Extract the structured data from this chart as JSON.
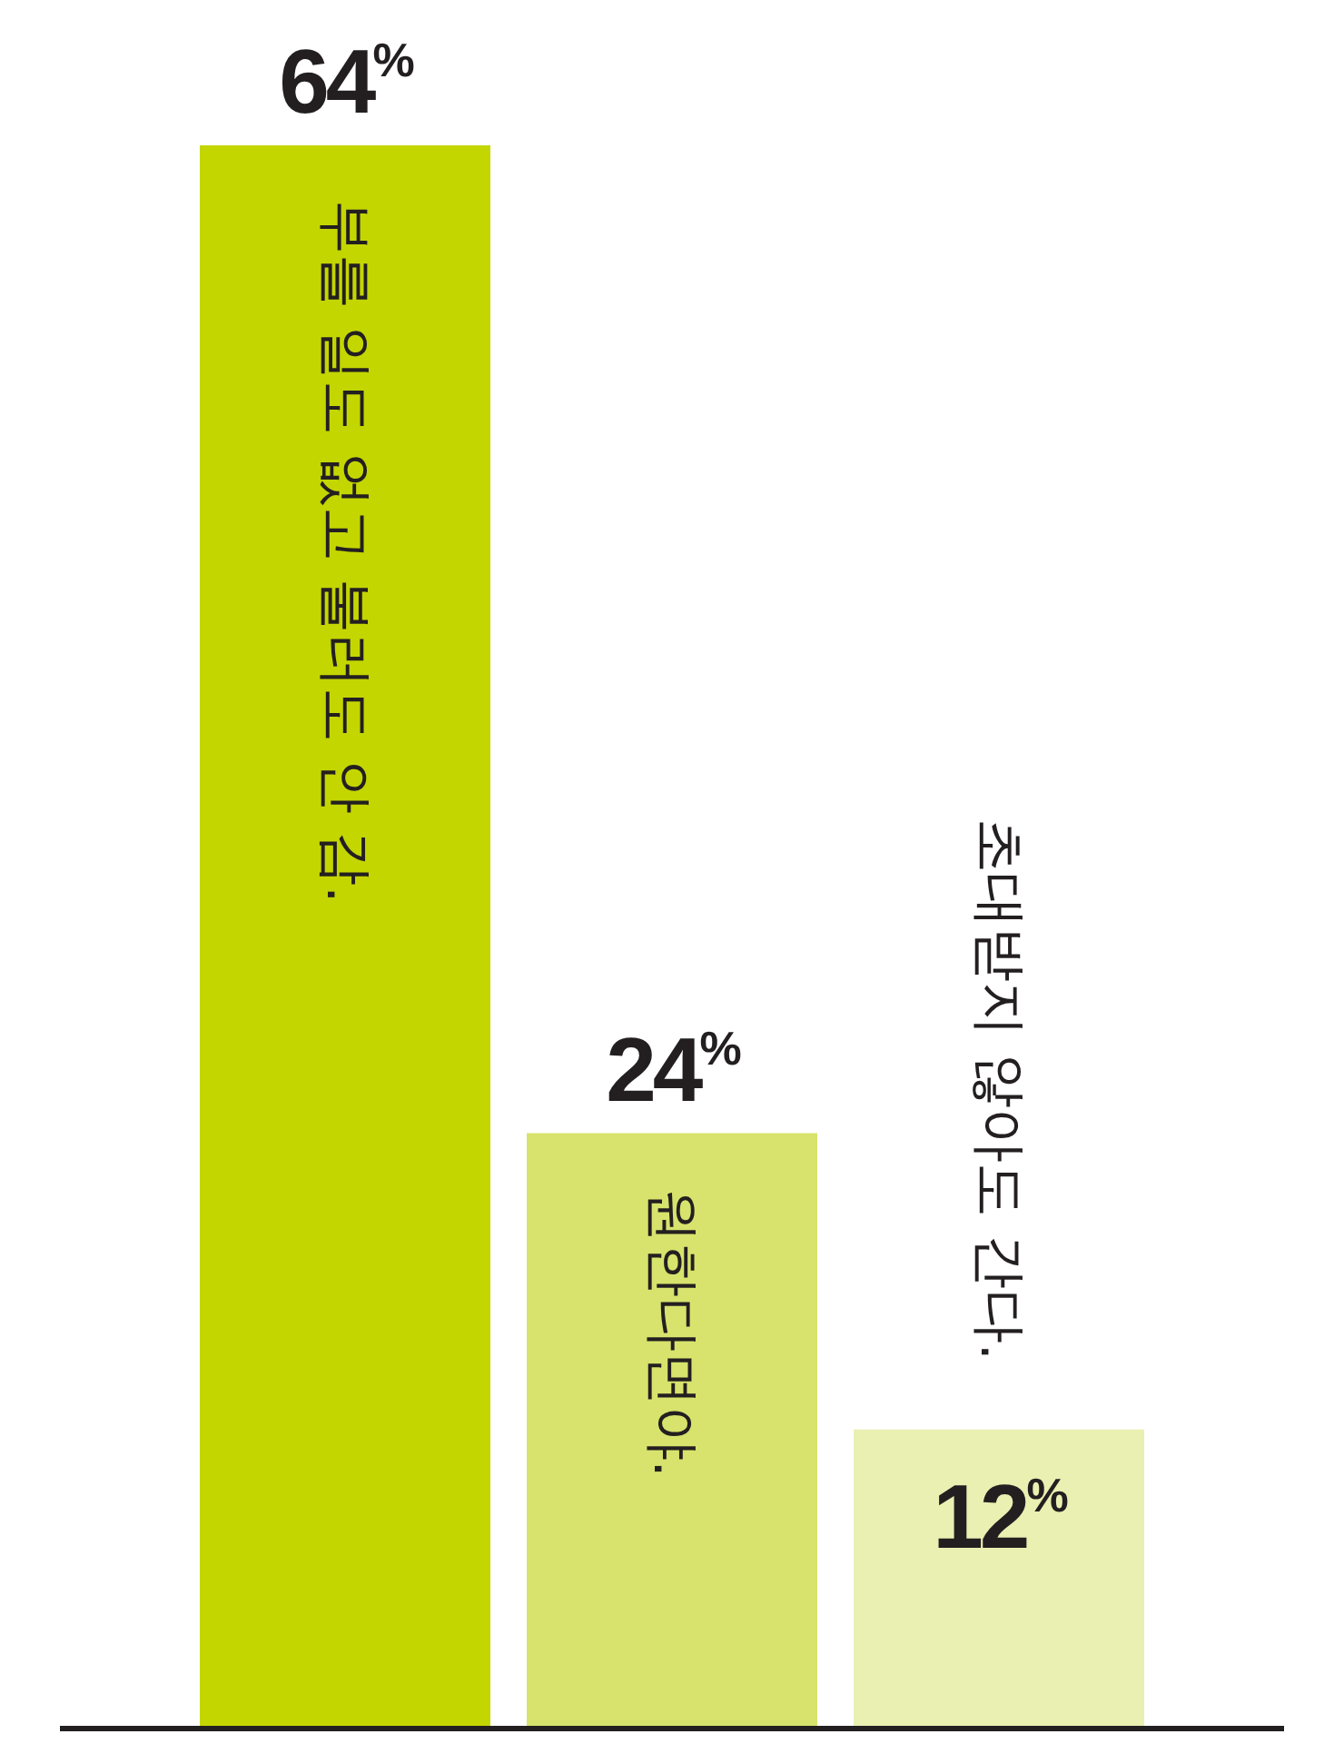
{
  "chart_data": {
    "type": "bar",
    "categories": [
      "부를 일도 없고 불러도 안 감.",
      "원한다면야.",
      "초대받지 않아도 간다."
    ],
    "values": [
      64,
      24,
      12
    ],
    "colors": [
      "#c4d600",
      "#d7e36c",
      "#e9f0b2"
    ],
    "value_labels": [
      "64$^{%}$",
      "24$^{%}$",
      "12$^{%}$"
    ]
  }
}
